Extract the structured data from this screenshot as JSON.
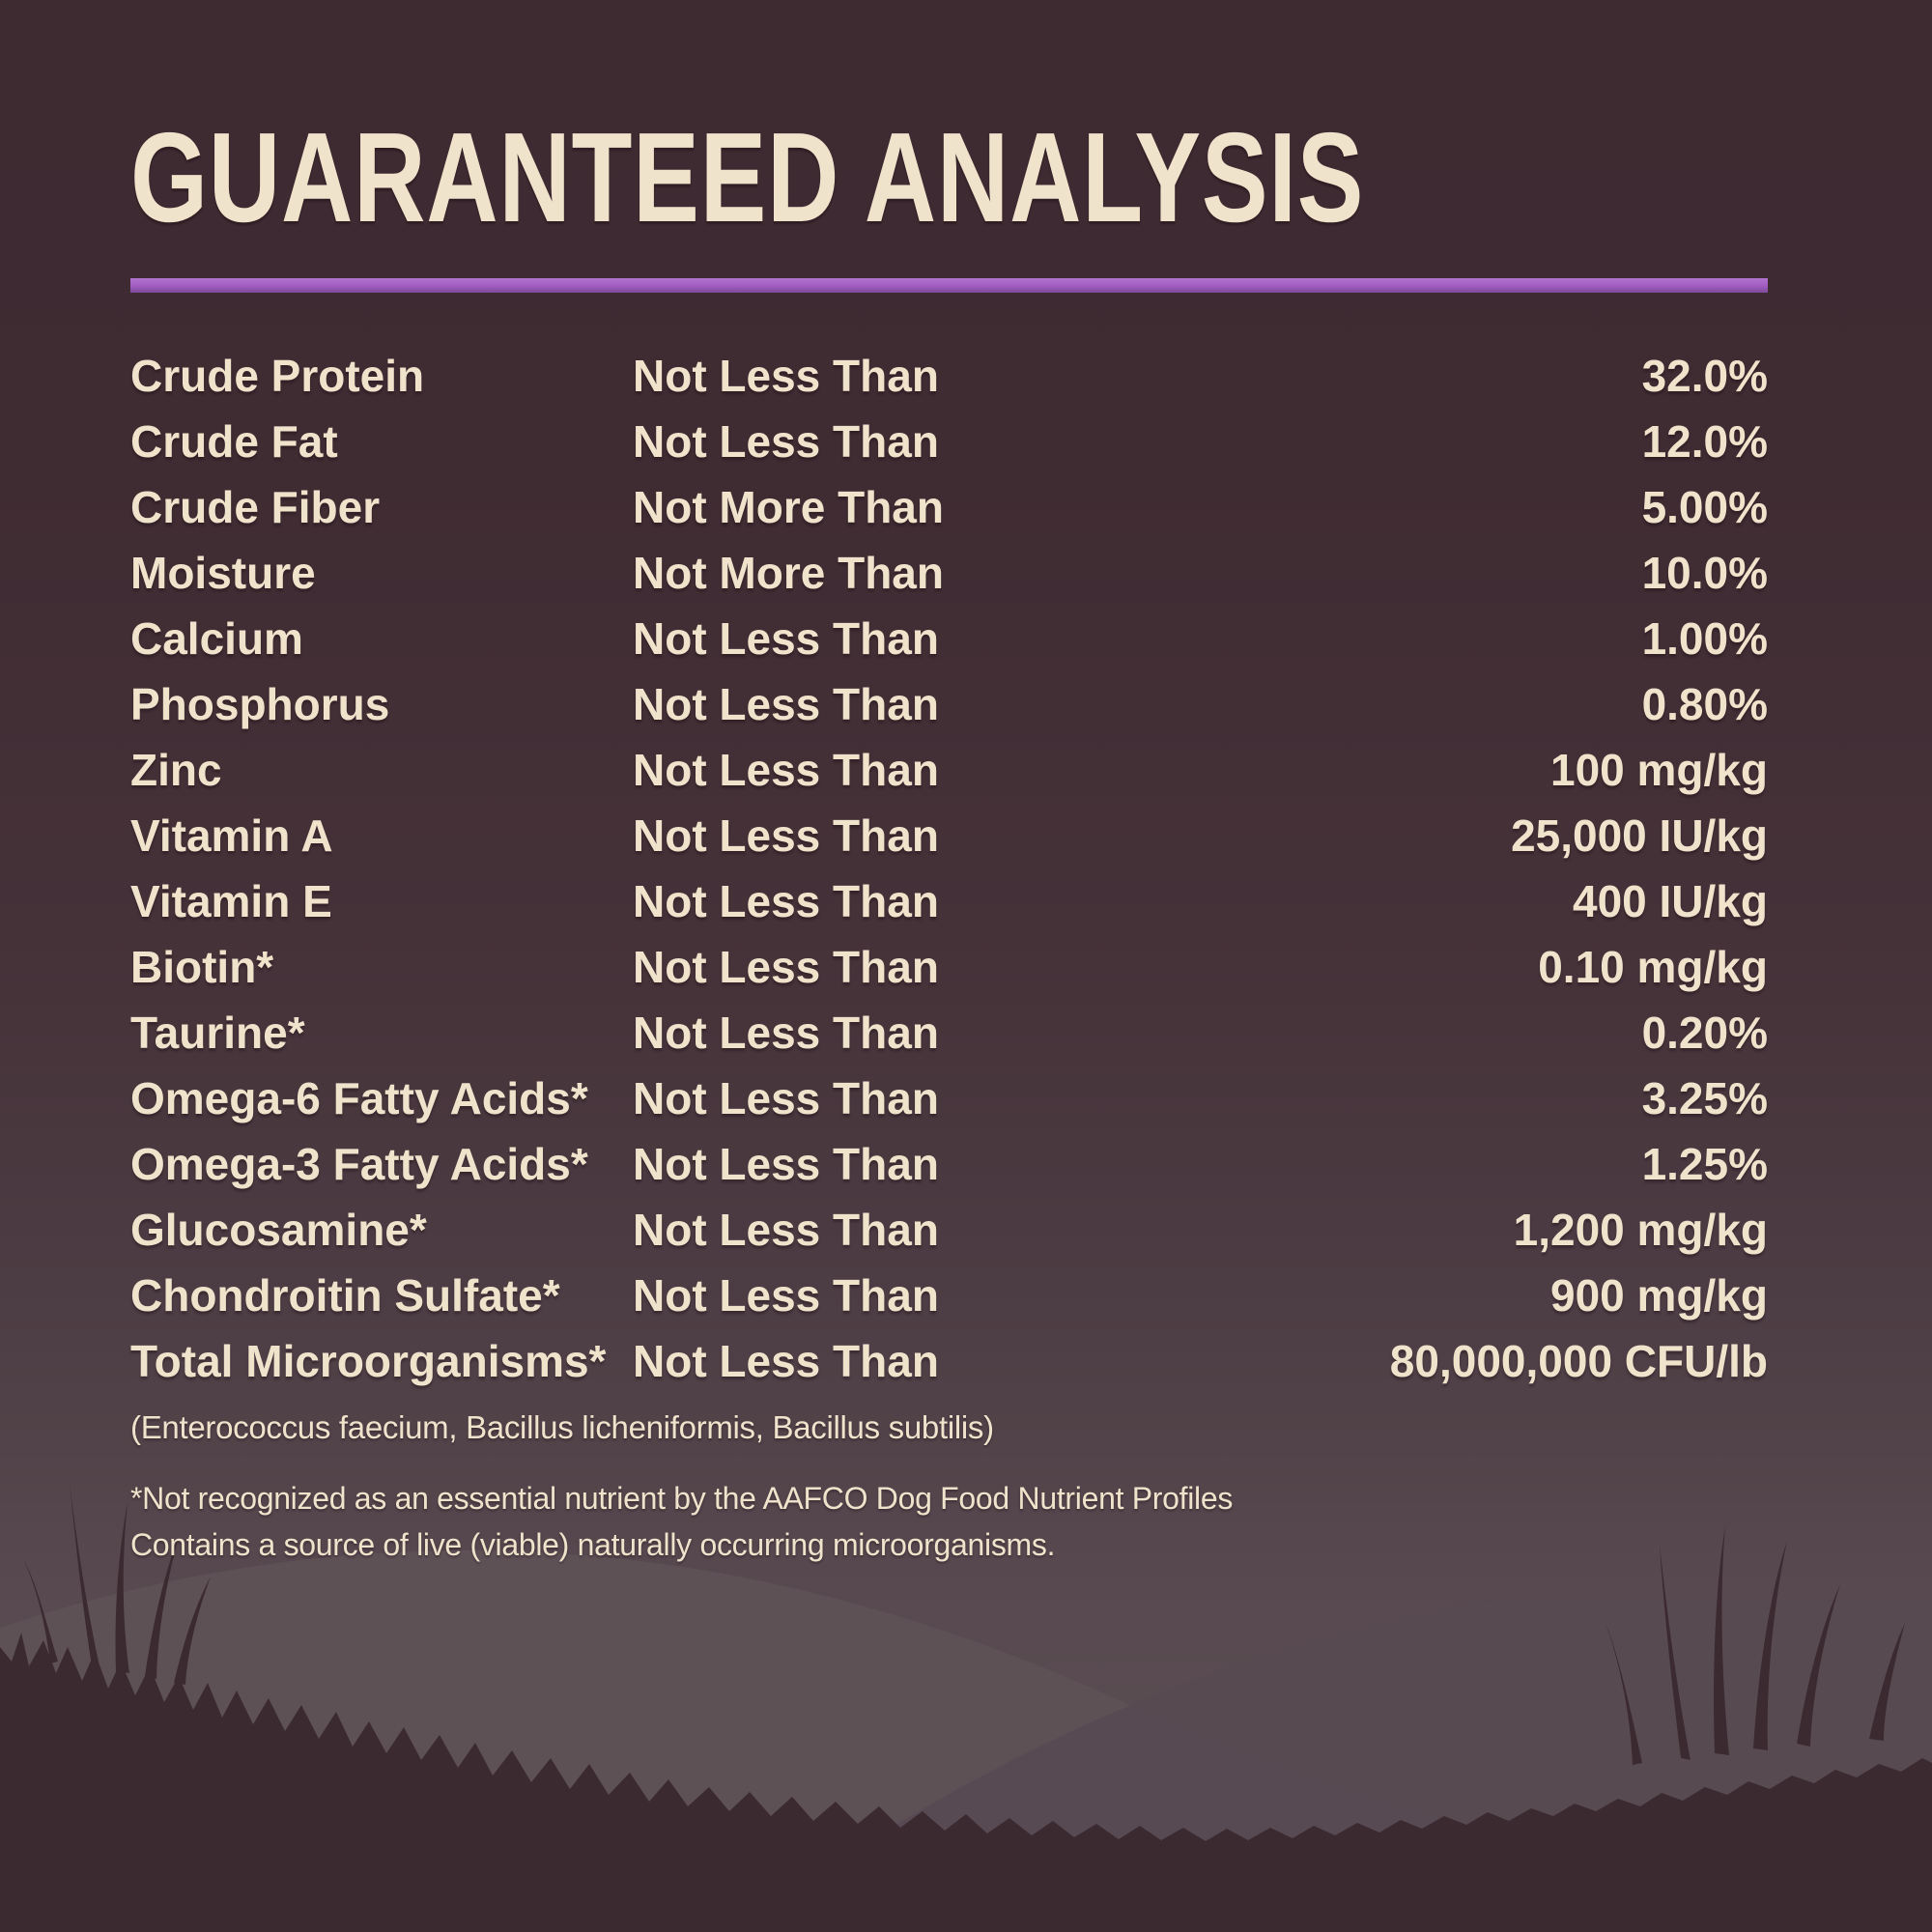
{
  "title": "GUARANTEED ANALYSIS",
  "colors": {
    "accent": "#a05cc0",
    "text": "#f0e3cc",
    "bg_top": "#3e2a31",
    "bg_bottom": "#5e5156",
    "hill_light": "#5e5156",
    "hill_mid": "#584a51",
    "silhouette": "#3c2a31"
  },
  "table": {
    "rows": [
      {
        "nutrient": "Crude Protein",
        "qualifier": "Not Less Than",
        "value": "32.0%"
      },
      {
        "nutrient": "Crude Fat",
        "qualifier": "Not Less Than",
        "value": "12.0%"
      },
      {
        "nutrient": "Crude Fiber",
        "qualifier": "Not More Than",
        "value": "5.00%"
      },
      {
        "nutrient": "Moisture",
        "qualifier": "Not More Than",
        "value": "10.0%"
      },
      {
        "nutrient": "Calcium",
        "qualifier": "Not Less Than",
        "value": "1.00%"
      },
      {
        "nutrient": "Phosphorus",
        "qualifier": "Not Less Than",
        "value": "0.80%"
      },
      {
        "nutrient": "Zinc",
        "qualifier": "Not Less Than",
        "value": "100 mg/kg"
      },
      {
        "nutrient": "Vitamin A",
        "qualifier": "Not Less Than",
        "value": "25,000 IU/kg"
      },
      {
        "nutrient": "Vitamin E",
        "qualifier": "Not Less Than",
        "value": "400 IU/kg"
      },
      {
        "nutrient": "Biotin*",
        "qualifier": "Not Less Than",
        "value": "0.10 mg/kg"
      },
      {
        "nutrient": "Taurine*",
        "qualifier": "Not Less Than",
        "value": "0.20%"
      },
      {
        "nutrient": "Omega-6 Fatty Acids*",
        "qualifier": "Not Less Than",
        "value": "3.25%"
      },
      {
        "nutrient": "Omega-3 Fatty Acids*",
        "qualifier": "Not Less Than",
        "value": "1.25%"
      },
      {
        "nutrient": "Glucosamine*",
        "qualifier": "Not Less Than",
        "value": "1,200 mg/kg"
      },
      {
        "nutrient": "Chondroitin Sulfate*",
        "qualifier": "Not Less Than",
        "value": "900 mg/kg"
      },
      {
        "nutrient": "Total Microorganisms*",
        "qualifier": "Not Less Than",
        "value": "80,000,000 CFU/lb"
      }
    ]
  },
  "footnotes": {
    "organisms": "(Enterococcus faecium, Bacillus licheniformis, Bacillus subtilis)",
    "aafco_line1": "*Not recognized as an essential nutrient by the AAFCO Dog Food Nutrient Profiles",
    "aafco_line2": "Contains a source of live (viable) naturally occurring microorganisms."
  }
}
